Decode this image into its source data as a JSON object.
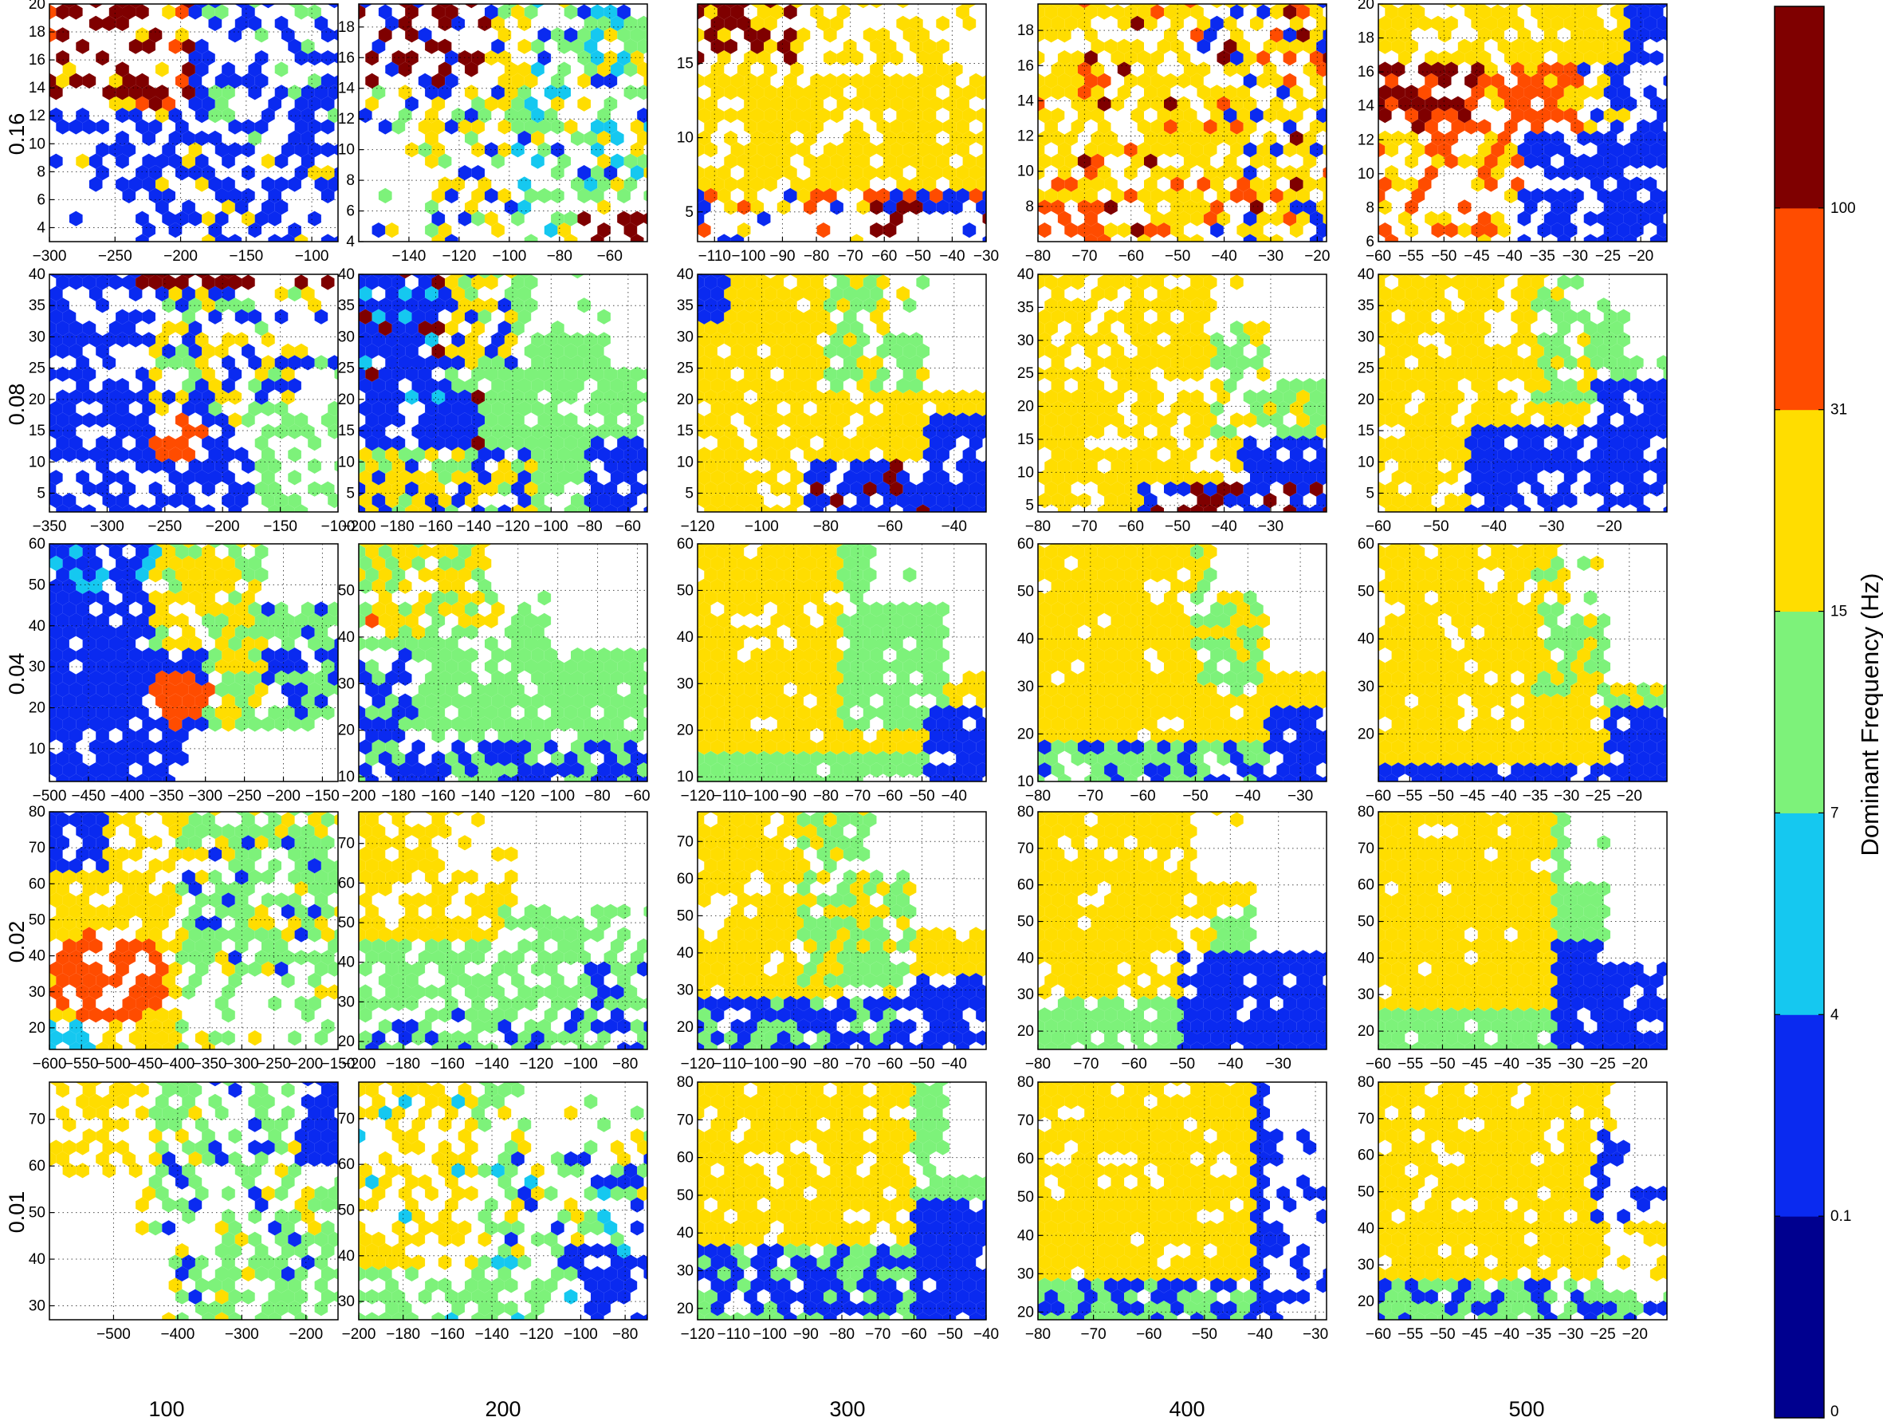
{
  "chart_data": {
    "type": "heatmap",
    "rows": [
      {
        "label": "0.16",
        "value": 0.16
      },
      {
        "label": "0.08",
        "value": 0.08
      },
      {
        "label": "0.04",
        "value": 0.04
      },
      {
        "label": "0.02",
        "value": 0.02
      },
      {
        "label": "0.01",
        "value": 0.01
      }
    ],
    "columns": [
      {
        "label": "100",
        "value": 100
      },
      {
        "label": "200",
        "value": 200
      },
      {
        "label": "300",
        "value": 300
      },
      {
        "label": "400",
        "value": 400
      },
      {
        "label": "500",
        "value": 500
      }
    ],
    "colorbar": {
      "label": "Dominant Frequency (Hz)",
      "bins": [
        {
          "from": "0",
          "to": "0.1",
          "color": "#00008f"
        },
        {
          "from": "0.1",
          "to": "4",
          "color": "#0a2af0"
        },
        {
          "from": "4",
          "to": "7",
          "color": "#15c8f0"
        },
        {
          "from": "7",
          "to": "15",
          "color": "#7df27a"
        },
        {
          "from": "15",
          "to": "31",
          "color": "#ffdd00"
        },
        {
          "from": "31",
          "to": "100",
          "color": "#ff4c00"
        },
        {
          "from": "100",
          "to": "",
          "color": "#7f0000"
        }
      ],
      "tick_labels": [
        "0",
        "0.1",
        "4",
        "7",
        "15",
        "31",
        "100"
      ]
    },
    "grid": true,
    "panels": [
      {
        "row": 0,
        "col": 0,
        "xlim": [
          -300,
          -80
        ],
        "ylim": [
          3,
          20
        ],
        "xticks": [
          -300,
          -250,
          -200,
          -150,
          -100
        ],
        "yticks": [
          4,
          6,
          8,
          10,
          12,
          14,
          16,
          18,
          20
        ],
        "pattern": "p00"
      },
      {
        "row": 0,
        "col": 1,
        "xlim": [
          -160,
          -45
        ],
        "ylim": [
          4,
          19.5
        ],
        "xticks": [
          -140,
          -120,
          -100,
          -80,
          -60
        ],
        "yticks": [
          4,
          6,
          8,
          10,
          12,
          14,
          16,
          18
        ],
        "pattern": "p01"
      },
      {
        "row": 0,
        "col": 2,
        "xlim": [
          -115,
          -30
        ],
        "ylim": [
          3,
          19
        ],
        "xticks": [
          -110,
          -100,
          -90,
          -80,
          -70,
          -60,
          -50,
          -40,
          -30
        ],
        "yticks": [
          5,
          10,
          15
        ],
        "pattern": "p02"
      },
      {
        "row": 0,
        "col": 3,
        "xlim": [
          -80,
          -18
        ],
        "ylim": [
          6,
          19.5
        ],
        "xticks": [
          -80,
          -70,
          -60,
          -50,
          -40,
          -30,
          -20
        ],
        "yticks": [
          8,
          10,
          12,
          14,
          16,
          18
        ],
        "pattern": "p03"
      },
      {
        "row": 0,
        "col": 4,
        "xlim": [
          -60,
          -16
        ],
        "ylim": [
          6,
          20
        ],
        "xticks": [
          -60,
          -55,
          -50,
          -45,
          -40,
          -35,
          -30,
          -25,
          -20
        ],
        "yticks": [
          6,
          8,
          10,
          12,
          14,
          16,
          18,
          20
        ],
        "pattern": "p04"
      },
      {
        "row": 1,
        "col": 0,
        "xlim": [
          -350,
          -100
        ],
        "ylim": [
          2,
          40
        ],
        "xticks": [
          -350,
          -300,
          -250,
          -200,
          -150,
          -100
        ],
        "yticks": [
          5,
          10,
          15,
          20,
          25,
          30,
          35,
          40
        ],
        "pattern": "p10"
      },
      {
        "row": 1,
        "col": 1,
        "xlim": [
          -200,
          -50
        ],
        "ylim": [
          2,
          40
        ],
        "xticks": [
          -200,
          -180,
          -160,
          -140,
          -120,
          -100,
          -80,
          -60
        ],
        "yticks": [
          5,
          10,
          15,
          20,
          25,
          30,
          35,
          40
        ],
        "pattern": "p11"
      },
      {
        "row": 1,
        "col": 2,
        "xlim": [
          -120,
          -30
        ],
        "ylim": [
          2,
          40
        ],
        "xticks": [
          -120,
          -100,
          -80,
          -60,
          -40
        ],
        "yticks": [
          5,
          10,
          15,
          20,
          25,
          30,
          35,
          40
        ],
        "pattern": "p12"
      },
      {
        "row": 1,
        "col": 3,
        "xlim": [
          -80,
          -18
        ],
        "ylim": [
          4,
          40
        ],
        "xticks": [
          -80,
          -70,
          -60,
          -50,
          -40,
          -30
        ],
        "yticks": [
          5,
          10,
          15,
          20,
          25,
          30,
          35,
          40
        ],
        "pattern": "p13"
      },
      {
        "row": 1,
        "col": 4,
        "xlim": [
          -60,
          -10
        ],
        "ylim": [
          2,
          40
        ],
        "xticks": [
          -60,
          -50,
          -40,
          -30,
          -20
        ],
        "yticks": [
          5,
          10,
          15,
          20,
          25,
          30,
          35,
          40
        ],
        "pattern": "p14"
      },
      {
        "row": 2,
        "col": 0,
        "xlim": [
          -500,
          -130
        ],
        "ylim": [
          2,
          60
        ],
        "xticks": [
          -500,
          -450,
          -400,
          -350,
          -300,
          -250,
          -200,
          -150
        ],
        "yticks": [
          10,
          20,
          30,
          40,
          50,
          60
        ],
        "pattern": "p20"
      },
      {
        "row": 2,
        "col": 1,
        "xlim": [
          -200,
          -55
        ],
        "ylim": [
          9,
          60
        ],
        "xticks": [
          -200,
          -180,
          -160,
          -140,
          -120,
          -100,
          -80,
          -60
        ],
        "yticks": [
          10,
          20,
          30,
          40,
          50
        ],
        "pattern": "p21"
      },
      {
        "row": 2,
        "col": 2,
        "xlim": [
          -120,
          -30
        ],
        "ylim": [
          9,
          60
        ],
        "xticks": [
          -120,
          -110,
          -100,
          -90,
          -80,
          -70,
          -60,
          -50,
          -40
        ],
        "yticks": [
          10,
          20,
          30,
          40,
          50,
          60
        ],
        "pattern": "p22"
      },
      {
        "row": 2,
        "col": 3,
        "xlim": [
          -80,
          -25
        ],
        "ylim": [
          10,
          60
        ],
        "xticks": [
          -80,
          -70,
          -60,
          -50,
          -40,
          -30
        ],
        "yticks": [
          10,
          20,
          30,
          40,
          50,
          60
        ],
        "pattern": "p23"
      },
      {
        "row": 2,
        "col": 4,
        "xlim": [
          -60,
          -14
        ],
        "ylim": [
          10,
          60
        ],
        "xticks": [
          -60,
          -55,
          -50,
          -45,
          -40,
          -35,
          -30,
          -25,
          -20
        ],
        "yticks": [
          20,
          30,
          40,
          50,
          60
        ],
        "pattern": "p24"
      },
      {
        "row": 3,
        "col": 0,
        "xlim": [
          -600,
          -150
        ],
        "ylim": [
          14,
          80
        ],
        "xticks": [
          -600,
          -550,
          -500,
          -450,
          -400,
          -350,
          -300,
          -250,
          -200,
          -150
        ],
        "yticks": [
          20,
          30,
          40,
          50,
          60,
          70,
          80
        ],
        "pattern": "p30"
      },
      {
        "row": 3,
        "col": 1,
        "xlim": [
          -200,
          -70
        ],
        "ylim": [
          18,
          78
        ],
        "xticks": [
          -200,
          -180,
          -160,
          -140,
          -120,
          -100,
          -80
        ],
        "yticks": [
          20,
          30,
          40,
          50,
          60,
          70
        ],
        "pattern": "p31"
      },
      {
        "row": 3,
        "col": 2,
        "xlim": [
          -120,
          -30
        ],
        "ylim": [
          14,
          78
        ],
        "xticks": [
          -120,
          -110,
          -100,
          -90,
          -80,
          -70,
          -60,
          -50,
          -40
        ],
        "yticks": [
          20,
          30,
          40,
          50,
          60,
          70
        ],
        "pattern": "p32"
      },
      {
        "row": 3,
        "col": 3,
        "xlim": [
          -80,
          -20
        ],
        "ylim": [
          15,
          80
        ],
        "xticks": [
          -80,
          -70,
          -60,
          -50,
          -40,
          -30
        ],
        "yticks": [
          20,
          30,
          40,
          50,
          60,
          70,
          80
        ],
        "pattern": "p33"
      },
      {
        "row": 3,
        "col": 4,
        "xlim": [
          -60,
          -15
        ],
        "ylim": [
          15,
          80
        ],
        "xticks": [
          -60,
          -55,
          -50,
          -45,
          -40,
          -35,
          -30,
          -25,
          -20
        ],
        "yticks": [
          20,
          30,
          40,
          50,
          60,
          70,
          80
        ],
        "pattern": "p34"
      },
      {
        "row": 4,
        "col": 0,
        "xlim": [
          -600,
          -150
        ],
        "ylim": [
          27,
          78
        ],
        "xticks": [
          -500,
          -400,
          -300,
          -200
        ],
        "yticks": [
          30,
          40,
          50,
          60,
          70
        ],
        "pattern": "p40"
      },
      {
        "row": 4,
        "col": 1,
        "xlim": [
          -200,
          -70
        ],
        "ylim": [
          26,
          78
        ],
        "xticks": [
          -200,
          -180,
          -160,
          -140,
          -120,
          -100,
          -80
        ],
        "yticks": [
          30,
          40,
          50,
          60,
          70
        ],
        "pattern": "p41"
      },
      {
        "row": 4,
        "col": 2,
        "xlim": [
          -120,
          -40
        ],
        "ylim": [
          17,
          80
        ],
        "xticks": [
          -120,
          -110,
          -100,
          -90,
          -80,
          -70,
          -60,
          -50,
          -40
        ],
        "yticks": [
          20,
          30,
          40,
          50,
          60,
          70,
          80
        ],
        "pattern": "p42"
      },
      {
        "row": 4,
        "col": 3,
        "xlim": [
          -80,
          -28
        ],
        "ylim": [
          18,
          80
        ],
        "xticks": [
          -80,
          -70,
          -60,
          -50,
          -40,
          -30
        ],
        "yticks": [
          20,
          30,
          40,
          50,
          60,
          70,
          80
        ],
        "pattern": "p43"
      },
      {
        "row": 4,
        "col": 4,
        "xlim": [
          -60,
          -15
        ],
        "ylim": [
          15,
          80
        ],
        "xticks": [
          -60,
          -55,
          -50,
          -45,
          -40,
          -35,
          -30,
          -25,
          -20
        ],
        "yticks": [
          20,
          30,
          40,
          50,
          60,
          70,
          80
        ],
        "pattern": "p44"
      }
    ]
  }
}
